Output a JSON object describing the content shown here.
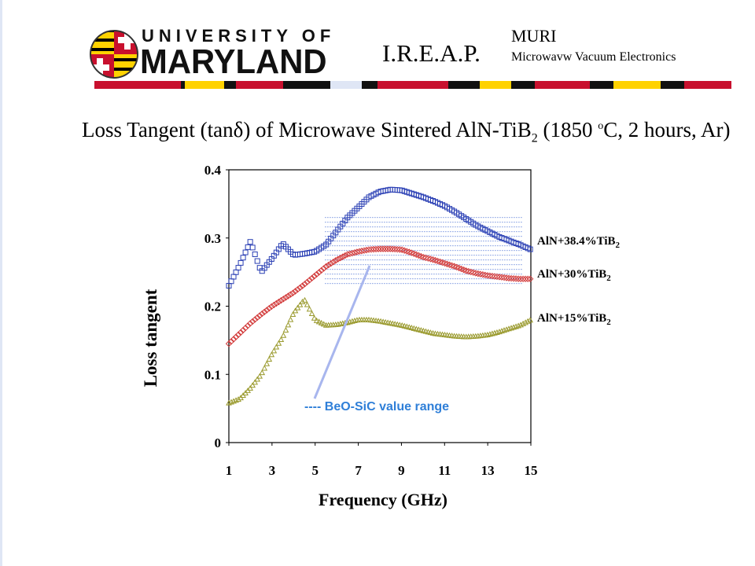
{
  "header": {
    "logo_top": "UNIVERSITY OF",
    "logo_main": "MARYLAND",
    "program": "I.R.E.A.P.",
    "muri_title": "MURI",
    "muri_subtitle": "Microwavw Vacuum Electronics"
  },
  "colors": {
    "series_38": "#2a3fb4",
    "series_30": "#d23a3a",
    "series_15": "#9a9a2e",
    "band_lines": "#4a6fd4",
    "annotation_line": "#a8b6ee",
    "annotation_text": "#2f7fd8",
    "maryland_red": "#c8102e",
    "maryland_gold": "#ffd200"
  },
  "chart_data": {
    "type": "scatter",
    "title": {
      "main": "Loss Tangent (tan",
      "delta": "δ",
      "mid": ") of Microwave Sintered AlN-TiB",
      "sub": "2",
      "temp": " (1850 ",
      "deg": "o",
      "tail": "C, 2 hours, Ar)"
    },
    "xlabel": "Frequency (GHz)",
    "ylabel": "Loss tangent",
    "xlim": [
      1,
      15
    ],
    "ylim": [
      0,
      0.4
    ],
    "x_ticks": [
      "1",
      "3",
      "5",
      "7",
      "9",
      "11",
      "13",
      "15"
    ],
    "y_ticks": [
      "0",
      "0.1",
      "0.2",
      "0.3",
      "0.4"
    ],
    "grid": false,
    "x": [
      1.0,
      1.5,
      2.0,
      2.5,
      3.0,
      3.5,
      4.0,
      4.5,
      5.0,
      5.5,
      6.0,
      6.5,
      7.0,
      7.5,
      8.0,
      8.5,
      9.0,
      9.5,
      10.0,
      10.5,
      11.0,
      11.5,
      12.0,
      12.5,
      13.0,
      13.5,
      14.0,
      14.5,
      15.0
    ],
    "series": [
      {
        "name": "AlN+38.4%TiB",
        "name_sub": "2",
        "marker": "square",
        "values": [
          0.23,
          0.26,
          0.295,
          0.25,
          0.27,
          0.292,
          0.275,
          0.277,
          0.28,
          0.29,
          0.31,
          0.33,
          0.345,
          0.36,
          0.368,
          0.371,
          0.37,
          0.365,
          0.36,
          0.354,
          0.347,
          0.338,
          0.328,
          0.318,
          0.31,
          0.302,
          0.296,
          0.29,
          0.283
        ]
      },
      {
        "name": "AlN+30%TiB",
        "name_sub": "2",
        "marker": "diamond",
        "values": [
          0.145,
          0.16,
          0.175,
          0.188,
          0.2,
          0.21,
          0.22,
          0.232,
          0.245,
          0.258,
          0.268,
          0.276,
          0.28,
          0.283,
          0.284,
          0.284,
          0.283,
          0.278,
          0.272,
          0.268,
          0.263,
          0.258,
          0.252,
          0.248,
          0.245,
          0.243,
          0.241,
          0.24,
          0.24
        ]
      },
      {
        "name": "AlN+15%TiB",
        "name_sub": "2",
        "marker": "triangle",
        "values": [
          0.058,
          0.064,
          0.08,
          0.1,
          0.13,
          0.155,
          0.19,
          0.21,
          0.18,
          0.172,
          0.173,
          0.176,
          0.18,
          0.18,
          0.178,
          0.175,
          0.172,
          0.168,
          0.164,
          0.16,
          0.158,
          0.156,
          0.155,
          0.156,
          0.158,
          0.162,
          0.167,
          0.172,
          0.18
        ]
      }
    ],
    "band": {
      "x": [
        6,
        15
      ],
      "y": [
        0.23,
        0.33
      ]
    },
    "annotation": "---- BeO-SiC value range"
  }
}
